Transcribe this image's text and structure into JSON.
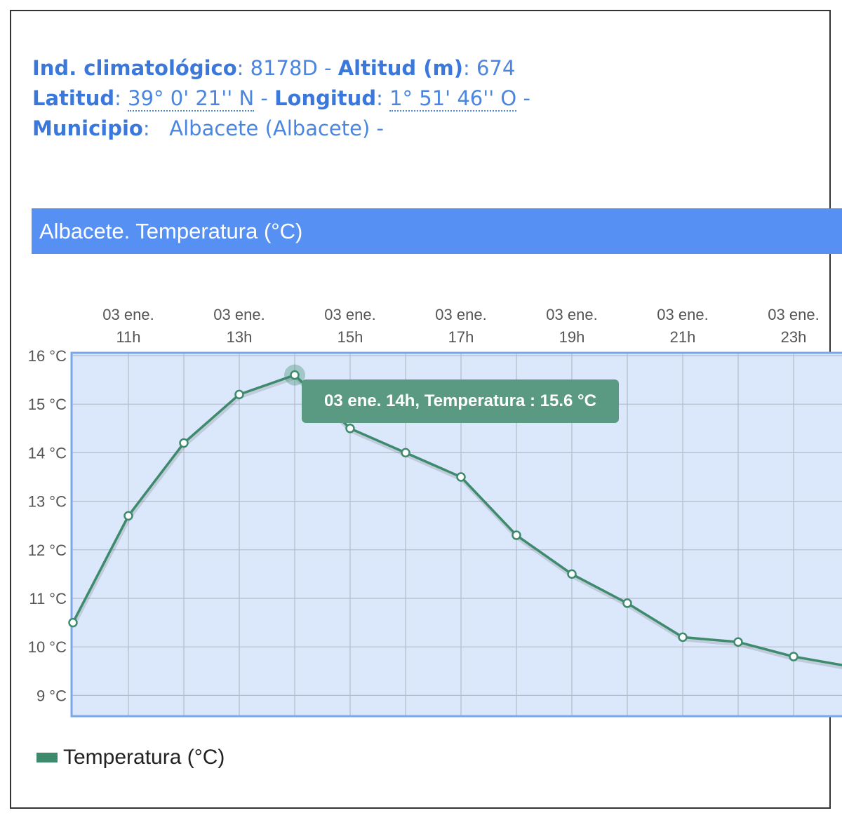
{
  "station": {
    "indicativo_label": "Ind. climatológico",
    "indicativo_value": "8178D",
    "altitud_label": "Altitud (m)",
    "altitud_value": "674",
    "latitud_label": "Latitud",
    "latitud_value": "39° 0' 21'' N",
    "longitud_label": "Longitud",
    "longitud_value": "1° 51' 46'' O",
    "municipio_label": "Municipio",
    "municipio_value": "Albacete (Albacete)"
  },
  "panel": {
    "title": "Albacete. Temperatura (°C)"
  },
  "tooltip": {
    "text": "03 ene. 14h, Temperatura : 15.6 °C"
  },
  "legend": {
    "label": "Temperatura (°C)"
  },
  "colors": {
    "line": "#3d8a6c",
    "plot_background": "#dbe8fb",
    "plot_border": "#7aa7ea",
    "banner": "#5590f2",
    "tooltip": "#5a9a83"
  },
  "chart_data": {
    "type": "line",
    "title": "Albacete. Temperatura (°C)",
    "x": [
      "03 ene. 10h",
      "03 ene. 11h",
      "03 ene. 12h",
      "03 ene. 13h",
      "03 ene. 14h",
      "03 ene. 15h",
      "03 ene. 16h",
      "03 ene. 17h",
      "03 ene. 18h",
      "03 ene. 19h",
      "03 ene. 20h",
      "03 ene. 21h",
      "03 ene. 22h",
      "03 ene. 23h",
      "04 ene. 00h"
    ],
    "x_tick_labels": [
      {
        "hour": "11h",
        "date": "03 ene."
      },
      {
        "hour": "13h",
        "date": "03 ene."
      },
      {
        "hour": "15h",
        "date": "03 ene."
      },
      {
        "hour": "17h",
        "date": "03 ene."
      },
      {
        "hour": "19h",
        "date": "03 ene."
      },
      {
        "hour": "21h",
        "date": "03 ene."
      },
      {
        "hour": "23h",
        "date": "03 ene."
      }
    ],
    "y_tick_labels": [
      "16 °C",
      "15 °C",
      "14 °C",
      "13 °C",
      "12 °C",
      "11 °C",
      "10 °C",
      "9 °C"
    ],
    "series": [
      {
        "name": "Temperatura (°C)",
        "values": [
          10.5,
          12.7,
          14.2,
          15.2,
          15.6,
          14.5,
          14.0,
          13.5,
          12.3,
          11.5,
          10.9,
          10.2,
          10.1,
          9.8,
          9.6
        ]
      }
    ],
    "ylim": [
      8.5,
      16
    ],
    "grid": true,
    "x_axis_position": "top",
    "legend_position": "bottom-left",
    "highlighted_point": "03 ene. 14h"
  }
}
